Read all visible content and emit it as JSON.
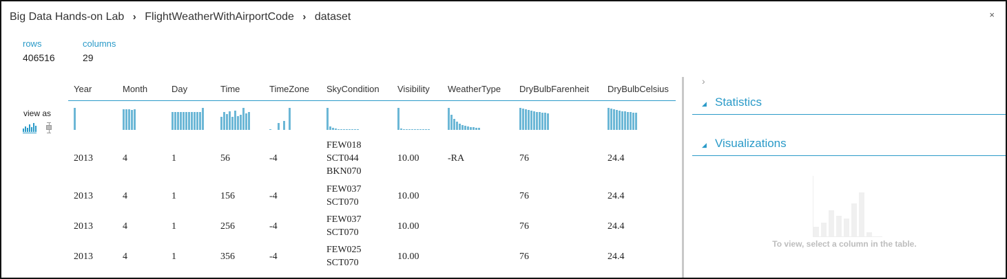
{
  "breadcrumb": [
    "Big Data Hands-on Lab",
    "FlightWeatherWithAirportCode",
    "dataset"
  ],
  "close_label": "×",
  "summary": {
    "rows_label": "rows",
    "rows_value": "406516",
    "columns_label": "columns",
    "columns_value": "29"
  },
  "view_as_label": "view as",
  "columns": [
    {
      "name": "Year",
      "hist": [
        1
      ]
    },
    {
      "name": "Month",
      "hist": [
        0.95,
        0.95,
        0.95,
        0.9,
        0.95
      ]
    },
    {
      "name": "Day",
      "hist": [
        0.8,
        0.8,
        0.8,
        0.82,
        0.8,
        0.8,
        0.82,
        0.8,
        0.82,
        0.8,
        0.82,
        1
      ]
    },
    {
      "name": "Time",
      "hist": [
        0.6,
        0.8,
        0.72,
        0.84,
        0.6,
        0.88,
        0.64,
        0.68,
        1,
        0.76,
        0.8
      ]
    },
    {
      "name": "TimeZone",
      "hist": [
        0.04,
        0,
        0,
        0.3,
        0,
        0.42,
        0,
        1
      ]
    },
    {
      "name": "SkyCondition",
      "hist": [
        1,
        0.15,
        0.08,
        0.05,
        0.04,
        0.03,
        0.03,
        0.03,
        0.03,
        0.03,
        0.03,
        0.03
      ]
    },
    {
      "name": "Visibility",
      "hist": [
        1,
        0.05,
        0.03,
        0.02,
        0.02,
        0.02,
        0.02,
        0.02,
        0.02,
        0.02,
        0.02,
        0.02
      ]
    },
    {
      "name": "WeatherType",
      "hist": [
        1,
        0.68,
        0.5,
        0.36,
        0.27,
        0.23,
        0.18,
        0.15,
        0.14,
        0.12,
        0.1,
        0.09
      ]
    },
    {
      "name": "DryBulbFarenheit",
      "hist": [
        1,
        0.97,
        0.94,
        0.9,
        0.86,
        0.84,
        0.82,
        0.8,
        0.78,
        0.77,
        0.75
      ]
    },
    {
      "name": "DryBulbCelsius",
      "hist": [
        1,
        0.96,
        0.93,
        0.9,
        0.87,
        0.85,
        0.83,
        0.82,
        0.8,
        0.79,
        0.78
      ]
    }
  ],
  "rows": [
    [
      "2013",
      "4",
      "1",
      "56",
      "-4",
      [
        "FEW018",
        "SCT044",
        "BKN070"
      ],
      "10.00",
      "-RA",
      "76",
      "24.4"
    ],
    [
      "2013",
      "4",
      "1",
      "156",
      "-4",
      [
        "FEW037",
        "SCT070"
      ],
      "10.00",
      "",
      "76",
      "24.4"
    ],
    [
      "2013",
      "4",
      "1",
      "256",
      "-4",
      [
        "FEW037",
        "SCT070"
      ],
      "10.00",
      "",
      "76",
      "24.4"
    ],
    [
      "2013",
      "4",
      "1",
      "356",
      "-4",
      [
        "FEW025",
        "SCT070"
      ],
      "10.00",
      "",
      "76",
      "24.4"
    ]
  ],
  "side_panel": {
    "statistics_label": "Statistics",
    "visualizations_label": "Visualizations",
    "hint": "To view, select a column in the table."
  },
  "colors": {
    "accent": "#2a9ac8",
    "hist_bar": "#6cb7d6"
  }
}
